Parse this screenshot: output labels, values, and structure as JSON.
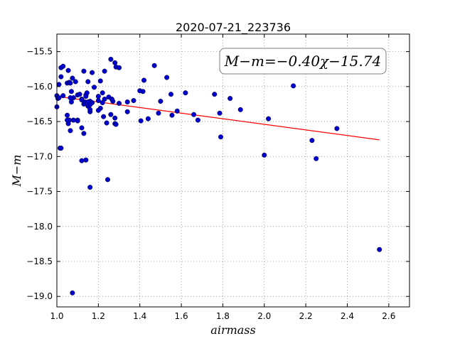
{
  "chart_data": {
    "type": "scatter",
    "title": "2020-07-21_223736",
    "xlabel": "airmass",
    "ylabel": "M−m",
    "annotation": "M−m=−0.40χ−15.74",
    "xlim": [
      1.0,
      2.7
    ],
    "ylim": [
      -19.15,
      -15.25
    ],
    "y_inverted": true,
    "grid": true,
    "xticks": [
      1.0,
      1.2,
      1.4,
      1.6,
      1.8,
      2.0,
      2.2,
      2.4,
      2.6
    ],
    "xtick_labels": [
      "1.0",
      "1.2",
      "1.4",
      "1.6",
      "1.8",
      "2.0",
      "2.2",
      "2.4",
      "2.6"
    ],
    "yticks": [
      -15.5,
      -16.0,
      -16.5,
      -17.0,
      -17.5,
      -18.0,
      -18.5,
      -19.0
    ],
    "ytick_labels": [
      "−15.5",
      "−16.0",
      "−16.5",
      "−17.0",
      "−17.5",
      "−18.0",
      "−18.5",
      "−19.0"
    ],
    "fit": {
      "slope": -0.4,
      "intercept": -15.74,
      "x_range": [
        1.0,
        2.555
      ]
    },
    "colors": {
      "points": "#0000cc",
      "fit_line": "#ff0000",
      "grid": "#666666"
    },
    "series": [
      {
        "x": [
          1.0,
          1.005,
          1.01,
          1.02,
          1.02,
          1.03,
          1.05,
          1.055,
          1.06,
          1.065,
          1.07,
          1.075,
          1.08,
          1.09,
          1.1,
          1.11,
          1.12,
          1.13,
          1.14,
          1.15,
          1.16,
          1.17,
          1.18,
          1.2,
          1.21,
          1.22,
          1.23,
          1.26,
          1.28,
          1.285,
          1.3,
          1.0,
          1.01,
          1.03,
          1.05,
          1.055,
          1.06,
          1.065,
          1.07,
          1.08,
          1.1,
          1.12,
          1.13,
          1.135,
          1.14,
          1.15,
          1.16,
          1.17,
          1.2,
          1.21,
          1.22,
          1.23,
          1.25,
          1.26,
          1.27,
          1.28,
          1.3,
          1.34,
          1.37,
          1.4,
          1.415,
          1.42,
          1.015,
          1.05,
          1.055,
          1.065,
          1.1,
          1.12,
          1.13,
          1.145,
          1.15,
          1.16,
          1.16,
          1.2,
          1.225,
          1.24,
          1.265,
          1.28,
          1.285,
          1.34,
          1.405,
          1.44,
          1.49,
          1.5,
          1.53,
          1.55,
          1.555,
          1.58,
          1.62,
          1.66,
          1.68,
          1.76,
          1.785,
          1.79,
          1.835,
          1.885,
          1.02,
          1.14,
          1.16,
          1.245,
          1.075,
          1.12,
          2.0,
          2.02,
          1.95,
          2.14,
          2.23,
          2.25,
          2.35,
          2.555,
          1.47
        ],
        "y": [
          -16.13,
          -16.17,
          -15.97,
          -15.86,
          -15.73,
          -15.71,
          -15.95,
          -15.77,
          -15.94,
          -15.95,
          -16.07,
          -15.88,
          -16.16,
          -15.93,
          -16.12,
          -16.11,
          -16.18,
          -15.78,
          -16.12,
          -15.93,
          -16.21,
          -15.8,
          -16.01,
          -16.14,
          -15.92,
          -16.09,
          -15.78,
          -15.61,
          -15.66,
          -15.72,
          -15.73,
          -16.29,
          -16.16,
          -16.13,
          -16.41,
          -16.48,
          -16.48,
          -16.16,
          -16.22,
          -16.48,
          -16.48,
          -16.19,
          -16.25,
          -16.22,
          -16.14,
          -16.28,
          -16.36,
          -16.23,
          -16.2,
          -16.31,
          -16.23,
          -16.18,
          -16.15,
          -16.4,
          -16.21,
          -16.53,
          -16.24,
          -16.36,
          -16.2,
          -16.06,
          -16.07,
          -15.91,
          -16.88,
          -16.48,
          -16.53,
          -16.63,
          -16.49,
          -16.59,
          -16.67,
          -16.09,
          -16.22,
          -16.26,
          -16.33,
          -16.34,
          -16.43,
          -16.52,
          -16.18,
          -16.45,
          -16.54,
          -16.22,
          -16.49,
          -16.46,
          -16.38,
          -16.21,
          -15.87,
          -16.11,
          -16.41,
          -16.35,
          -16.09,
          -16.4,
          -16.48,
          -16.11,
          -16.38,
          -16.72,
          -16.17,
          -16.33,
          -16.88,
          -17.05,
          -17.44,
          -17.33,
          -18.95,
          -17.06,
          -16.98,
          -16.46,
          -15.72,
          -15.99,
          -16.77,
          -17.03,
          -16.6,
          -18.33,
          -15.7
        ]
      }
    ]
  }
}
